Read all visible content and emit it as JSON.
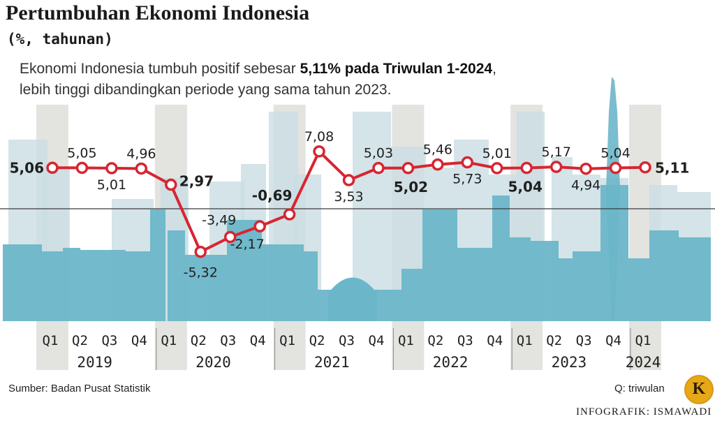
{
  "title": "Pertumbuhan Ekonomi Indonesia",
  "subtitle": "(%, tahunan)",
  "description": {
    "part1": "Ekonomi Indonesia tumbuh positif sebesar ",
    "bold": "5,11% pada Triwulan 1-2024",
    "part2": ",",
    "line2": "lebih tinggi dibandingkan periode yang sama tahun 2023."
  },
  "source": "Sumber: Badan Pusat Statistik",
  "quarter_note": "Q: triwulan",
  "credit": "INFOGRAFIK: ISMAWADI",
  "logo_letter": "K",
  "colors": {
    "line": "#d62631",
    "marker_fill": "#ffffff",
    "skyline": "#6cb6c9",
    "skyline_light": "#c9dde3",
    "band": "#e3e3e0"
  },
  "chart_data": {
    "type": "line",
    "x": [
      "Q1",
      "Q2",
      "Q3",
      "Q4",
      "Q1",
      "Q2",
      "Q3",
      "Q4",
      "Q1",
      "Q2",
      "Q3",
      "Q4",
      "Q1",
      "Q2",
      "Q3",
      "Q4",
      "Q1",
      "Q2",
      "Q3",
      "Q4",
      "Q1"
    ],
    "years": [
      "2019",
      "2020",
      "2021",
      "2022",
      "2023",
      "2024"
    ],
    "series": [
      {
        "values": [
          5.06,
          5.05,
          5.01,
          4.96,
          2.97,
          -5.32,
          -3.49,
          -2.17,
          -0.69,
          7.08,
          3.53,
          5.03,
          5.02,
          5.46,
          5.73,
          5.01,
          5.04,
          5.17,
          4.94,
          5.04,
          5.11
        ],
        "labels": [
          "5,06",
          "5,05",
          "5,01",
          "4,96",
          "2,97",
          "-5,32",
          "-3,49",
          "-2,17",
          "-0,69",
          "7,08",
          "3,53",
          "5,03",
          "5,02",
          "5,46",
          "5,73",
          "5,01",
          "5,04",
          "5,17",
          "4,94",
          "5,04",
          "5,11"
        ],
        "bold": [
          true,
          false,
          false,
          false,
          true,
          false,
          false,
          false,
          true,
          false,
          false,
          false,
          true,
          false,
          false,
          false,
          true,
          false,
          false,
          false,
          true
        ]
      }
    ],
    "baseline": 0,
    "grid": false,
    "legend": "none"
  }
}
